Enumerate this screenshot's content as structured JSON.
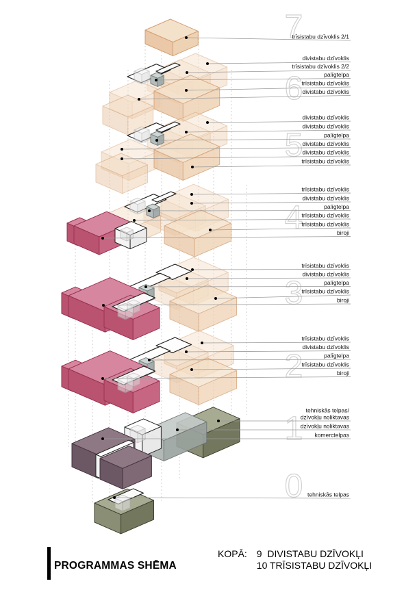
{
  "page": {
    "title": "PROGRAMMAS SHĒMA"
  },
  "summary": {
    "label": "KOPĀ:",
    "lines": [
      "9  DIVISTABU DZĪVOKĻI",
      "10 TRĪSISTABU DZĪVOKĻI"
    ]
  },
  "levels": [
    {
      "number": "7",
      "labels": [
        "trīsistabu dzīvoklis 2/1"
      ]
    },
    {
      "number": "6",
      "labels": [
        "divistabu dzīvoklis",
        "trīsistabu dzīvoklis 2/2",
        "palīgtelpa",
        "trīsistabu dzīvoklis",
        "divistabu dzīvoklis"
      ]
    },
    {
      "number": "5",
      "labels": [
        "divistabu dzīvoklis",
        "divistabu dzīvoklis",
        "palīgtelpa",
        "divistabu dzīvoklis",
        "divistabu dzīvoklis",
        "trīsistabu dzīvoklis"
      ]
    },
    {
      "number": "4",
      "labels": [
        "trīsistabu dzīvoklis",
        "divistabu dzīvoklis",
        "palīgtelpa",
        "trīsistabu dzīvoklis",
        "trīsistabu dzīvoklis",
        "biroji"
      ]
    },
    {
      "number": "3",
      "labels": [
        "trīsistabu dzīvoklis",
        "divistabu dzīvoklis",
        "palīgtelpa",
        "trīsistabu dzīvoklis",
        "biroji"
      ]
    },
    {
      "number": "2",
      "labels": [
        "trīsistabu dzīvoklis",
        "divistabu dzīvoklis",
        "palīgtelpa",
        "trīsistabu dzīvoklis",
        "biroji"
      ]
    },
    {
      "number": "1",
      "labels": [
        "tehniskās telpas/",
        "dzīvokļu noliktavas",
        "dzīvokļu noliktavas",
        "komerctelpas"
      ]
    },
    {
      "number": "0",
      "labels": [
        "tehniskās telpas"
      ]
    }
  ],
  "colors": {
    "apartments_tan": "#f4e0c8",
    "offices_pink": "#d6879f",
    "technical_olive": "#a7ab92",
    "storage_gray": "#c3cac7",
    "commercial_purple": "#8e7883"
  }
}
